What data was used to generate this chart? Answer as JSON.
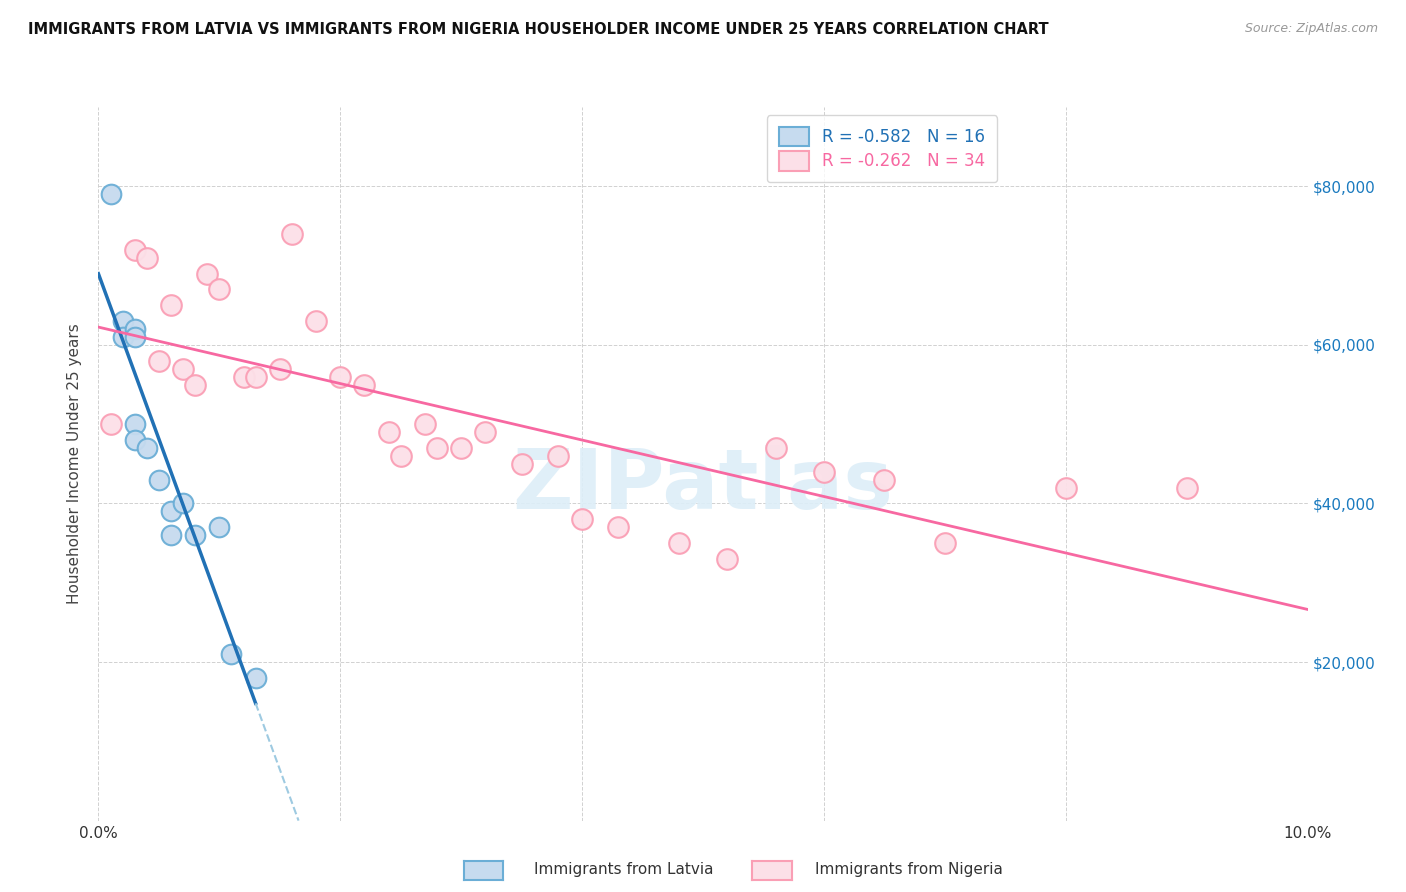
{
  "title": "IMMIGRANTS FROM LATVIA VS IMMIGRANTS FROM NIGERIA HOUSEHOLDER INCOME UNDER 25 YEARS CORRELATION CHART",
  "source": "Source: ZipAtlas.com",
  "ylabel": "Householder Income Under 25 years",
  "xlim": [
    0,
    0.1
  ],
  "ylim": [
    0,
    90000
  ],
  "legend_latvia_R": "-0.582",
  "legend_latvia_N": "16",
  "legend_nigeria_R": "-0.262",
  "legend_nigeria_N": "34",
  "legend_label_latvia": "Immigrants from Latvia",
  "legend_label_nigeria": "Immigrants from Nigeria",
  "color_latvia_edge": "#6baed6",
  "color_latvia_fill": "#c6dbef",
  "color_nigeria_edge": "#fa9fb5",
  "color_nigeria_fill": "#fce0e8",
  "color_trendline_latvia_solid": "#2171b5",
  "color_trendline_latvia_dash": "#9ecae1",
  "color_trendline_nigeria": "#f768a1",
  "watermark": "ZIPatlas",
  "latvia_x": [
    0.001,
    0.002,
    0.002,
    0.003,
    0.003,
    0.003,
    0.003,
    0.004,
    0.005,
    0.006,
    0.006,
    0.007,
    0.008,
    0.01,
    0.011,
    0.013
  ],
  "latvia_y": [
    79000,
    63000,
    61000,
    62000,
    61000,
    50000,
    48000,
    47000,
    43000,
    39000,
    36000,
    40000,
    36000,
    37000,
    21000,
    18000
  ],
  "nigeria_x": [
    0.001,
    0.003,
    0.004,
    0.005,
    0.006,
    0.007,
    0.008,
    0.009,
    0.01,
    0.012,
    0.013,
    0.015,
    0.016,
    0.018,
    0.02,
    0.022,
    0.024,
    0.025,
    0.027,
    0.028,
    0.03,
    0.032,
    0.035,
    0.038,
    0.04,
    0.043,
    0.048,
    0.052,
    0.056,
    0.06,
    0.065,
    0.07,
    0.08,
    0.09
  ],
  "nigeria_y": [
    50000,
    72000,
    71000,
    58000,
    65000,
    57000,
    55000,
    69000,
    67000,
    56000,
    56000,
    57000,
    74000,
    63000,
    56000,
    55000,
    49000,
    46000,
    50000,
    47000,
    47000,
    49000,
    45000,
    46000,
    38000,
    37000,
    35000,
    33000,
    47000,
    44000,
    43000,
    35000,
    42000,
    42000
  ]
}
